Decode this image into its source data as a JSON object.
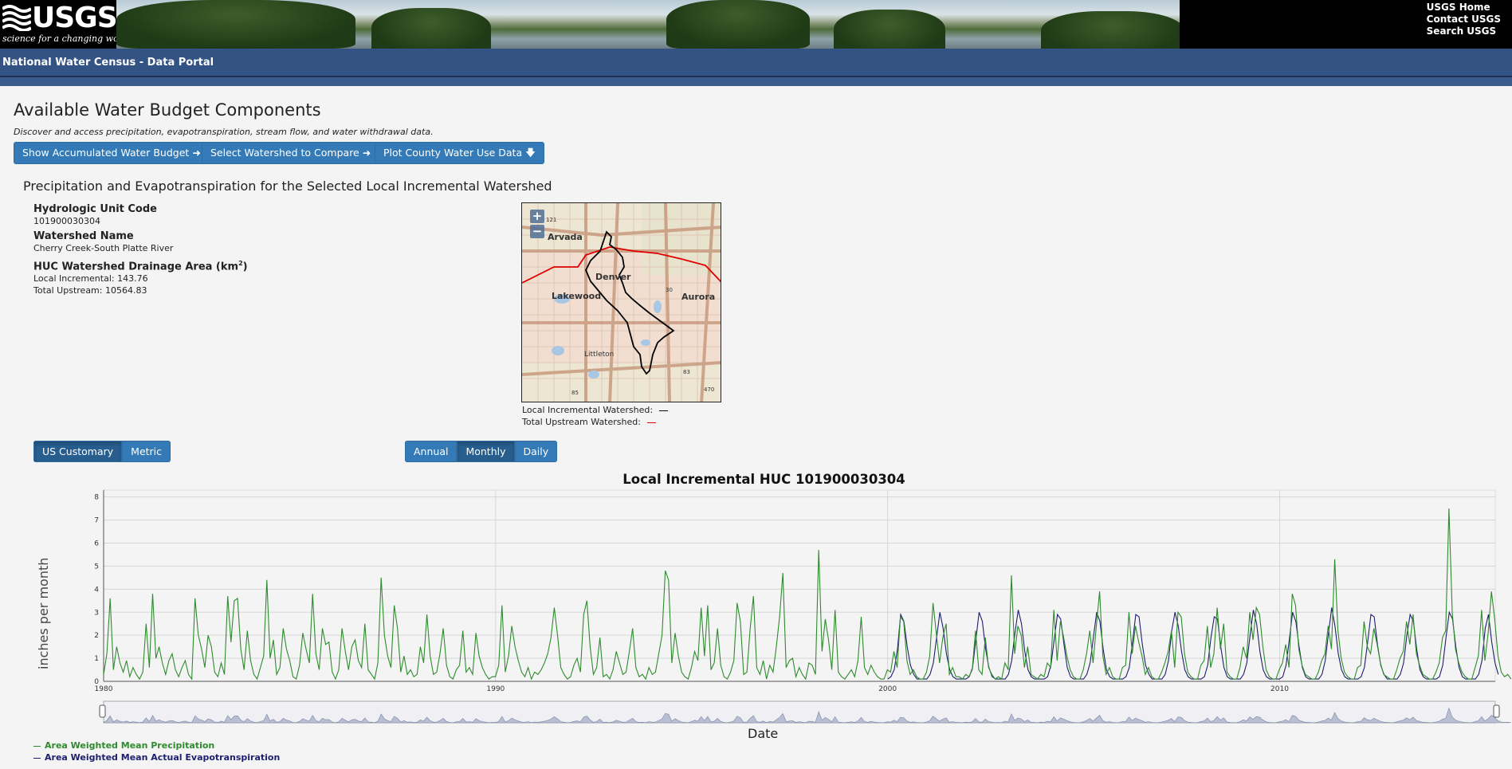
{
  "header": {
    "logo_text": "USGS",
    "logo_tagline": "science for a changing world",
    "links": [
      "USGS Home",
      "Contact USGS",
      "Search USGS"
    ]
  },
  "titlebar": {
    "title": "National Water Census - Data Portal"
  },
  "main": {
    "title": "Available Water Budget Components",
    "subtitle": "Discover and access precipitation, evapotranspiration, stream flow, and water withdrawal data.",
    "buttons": [
      {
        "label": "Show Accumulated Water Budget",
        "icon": "arrow-right-icon"
      },
      {
        "label": "Select Watershed to Compare",
        "icon": "arrow-right-icon"
      },
      {
        "label": "Plot County Water Use Data",
        "icon": "arrow-down-icon"
      }
    ],
    "section_title": "Precipitation and Evapotranspiration for the Selected Local Incremental Watershed"
  },
  "info": {
    "huc_label": "Hydrologic Unit Code",
    "huc_value": "101900030304",
    "name_label": "Watershed Name",
    "name_value": "Cherry Creek-South Platte River",
    "area_label": "HUC Watershed Drainage Area (km",
    "area_label_sup": "2",
    "area_label_end": ")",
    "local_incremental": "Local Incremental: 143.76",
    "total_upstream": "Total Upstream: 10564.83"
  },
  "map": {
    "zoom_in": "+",
    "zoom_out": "−",
    "places": [
      "Arvada",
      "Denver",
      "Lakewood",
      "Aurora",
      "Littleton"
    ],
    "shields": [
      "121",
      "30",
      "83",
      "85",
      "470"
    ],
    "legend_local": "Local Incremental Watershed:",
    "legend_upstream": "Total Upstream Watershed:",
    "local_color": "#000000",
    "upstream_color": "#e00000"
  },
  "units": {
    "options": [
      "US Customary",
      "Metric"
    ],
    "selected": "US Customary"
  },
  "interval": {
    "options": [
      "Annual",
      "Monthly",
      "Daily"
    ],
    "selected": "Monthly"
  },
  "chart": {
    "title": "Local Incremental HUC 101900030304",
    "ylabel": "inches per month",
    "xlabel": "Date",
    "legend_precip": "Area Weighted Mean Precipitation",
    "legend_et": "Area Weighted Mean Actual Evapotranspiration"
  },
  "chart_data": {
    "type": "line",
    "title": "Local Incremental HUC 101900030304",
    "xlabel": "Date",
    "ylabel": "inches per month",
    "xlim": [
      1980,
      2015.5
    ],
    "ylim": [
      0,
      8.3
    ],
    "yticks": [
      0,
      1,
      2,
      3,
      4,
      5,
      6,
      7,
      8
    ],
    "xticks": [
      1980,
      1990,
      2000,
      2010
    ],
    "grid": true,
    "legend_position": "bottom-left",
    "colors": {
      "precip": "#2e8b2e",
      "et": "#1e1e6e"
    },
    "series": [
      {
        "name": "Area Weighted Mean Precipitation",
        "start": 1980.0,
        "step": 0.0833,
        "values": [
          0.3,
          1.2,
          3.6,
          0.5,
          1.5,
          0.8,
          0.4,
          0.9,
          0.2,
          0.6,
          0.3,
          0.1,
          0.4,
          2.5,
          0.6,
          3.8,
          1.0,
          1.5,
          0.8,
          0.3,
          0.9,
          1.2,
          0.5,
          0.2,
          0.6,
          0.9,
          0.3,
          0.1,
          3.6,
          2.0,
          1.4,
          0.6,
          2.0,
          1.5,
          0.4,
          0.2,
          0.8,
          0.3,
          3.7,
          1.7,
          3.5,
          3.6,
          1.4,
          0.5,
          2.2,
          0.9,
          0.3,
          0.1,
          0.6,
          1.1,
          4.4,
          1.0,
          1.8,
          0.3,
          0.6,
          2.3,
          1.4,
          0.9,
          0.2,
          0.1,
          0.7,
          2.1,
          1.4,
          0.8,
          3.8,
          1.2,
          0.5,
          2.3,
          1.6,
          1.7,
          0.4,
          0.1,
          0.5,
          2.3,
          1.3,
          0.5,
          1.5,
          1.8,
          0.9,
          0.6,
          2.5,
          0.5,
          0.3,
          0.1,
          0.8,
          4.5,
          2.0,
          1.1,
          0.6,
          3.3,
          2.3,
          0.4,
          1.1,
          0.3,
          0.5,
          0.2,
          0.3,
          1.5,
          0.8,
          2.9,
          1.1,
          0.3,
          0.4,
          1.2,
          2.3,
          0.7,
          0.2,
          0.1,
          0.5,
          0.7,
          2.2,
          0.4,
          0.6,
          0.3,
          2.1,
          1.1,
          0.6,
          0.3,
          0.1,
          0.2,
          0.2,
          0.7,
          3.3,
          0.4,
          1.1,
          2.4,
          1.5,
          0.9,
          0.4,
          0.2,
          0.6,
          0.1,
          0.4,
          0.3,
          0.5,
          0.8,
          1.2,
          1.9,
          3.2,
          2.0,
          0.6,
          0.3,
          0.1,
          0.2,
          0.7,
          1.0,
          0.4,
          2.9,
          3.5,
          1.5,
          0.3,
          0.6,
          1.9,
          0.2,
          0.3,
          0.1,
          0.5,
          1.3,
          0.8,
          0.3,
          0.4,
          1.3,
          2.3,
          0.6,
          0.2,
          0.3,
          0.1,
          0.6,
          0.3,
          0.4,
          1.2,
          2.0,
          4.8,
          4.4,
          0.8,
          2.1,
          1.1,
          0.4,
          0.2,
          0.1,
          0.6,
          1.3,
          0.9,
          3.2,
          1.1,
          3.3,
          0.5,
          0.8,
          2.3,
          0.7,
          0.2,
          0.1,
          0.4,
          0.9,
          3.4,
          2.6,
          0.3,
          0.4,
          2.3,
          3.7,
          0.6,
          0.3,
          0.9,
          0.1,
          0.7,
          0.4,
          1.5,
          2.8,
          4.7,
          0.6,
          0.9,
          1.0,
          0.2,
          0.6,
          0.3,
          0.1,
          0.8,
          0.7,
          0.3,
          5.7,
          1.3,
          2.7,
          1.8,
          0.5,
          3.1,
          0.4,
          0.2,
          0.1,
          0.3,
          0.5,
          0.2,
          0.9,
          2.8,
          0.6,
          0.3,
          0.7,
          0.4,
          0.2,
          0.1,
          0.1,
          0.5,
          0.4,
          1.3,
          0.6,
          2.8,
          2.6,
          0.9,
          0.3,
          0.5,
          0.2,
          0.1,
          0.1,
          0.4,
          1.1,
          3.4,
          2.1,
          0.8,
          1.9,
          2.5,
          0.3,
          0.6,
          0.2,
          0.2,
          0.1,
          0.3,
          0.2,
          0.5,
          2.2,
          0.5,
          0.3,
          1.9,
          0.6,
          0.3,
          0.1,
          0.2,
          0.1,
          0.8,
          0.5,
          4.6,
          1.2,
          2.4,
          2.0,
          0.6,
          1.5,
          0.3,
          0.2,
          0.1,
          0.3,
          0.2,
          0.8,
          0.6,
          3.1,
          0.9,
          2.6,
          1.9,
          1.1,
          0.5,
          0.2,
          0.1,
          0.1,
          0.5,
          1.2,
          2.2,
          0.8,
          2.4,
          3.9,
          1.1,
          0.3,
          0.6,
          0.2,
          0.1,
          0.1,
          0.6,
          0.7,
          3.0,
          1.2,
          2.4,
          1.7,
          1.1,
          0.3,
          0.6,
          0.2,
          0.1,
          0.1,
          0.4,
          0.8,
          1.3,
          2.2,
          0.6,
          3.0,
          2.8,
          1.2,
          0.4,
          0.2,
          0.1,
          0.1,
          0.7,
          0.9,
          2.4,
          0.6,
          1.2,
          3.2,
          1.4,
          2.5,
          0.4,
          0.2,
          0.1,
          0.1,
          0.6,
          1.5,
          1.0,
          3.0,
          1.8,
          3.2,
          2.9,
          1.5,
          0.5,
          0.2,
          0.1,
          0.1,
          0.5,
          0.8,
          1.6,
          0.6,
          3.8,
          3.3,
          1.4,
          0.7,
          0.3,
          0.2,
          0.1,
          0.1,
          0.4,
          0.9,
          1.2,
          2.4,
          1.4,
          5.3,
          2.2,
          1.0,
          0.4,
          0.2,
          0.1,
          0.1,
          0.6,
          0.7,
          2.6,
          1.5,
          1.2,
          2.3,
          1.6,
          0.8,
          0.3,
          0.2,
          0.1,
          0.1,
          0.5,
          1.0,
          1.3,
          2.6,
          1.6,
          2.9,
          1.2,
          0.7,
          0.3,
          0.2,
          0.1,
          0.1,
          0.4,
          0.8,
          1.9,
          2.2,
          7.5,
          3.0,
          1.4,
          0.8,
          0.4,
          0.2,
          0.1,
          0.1,
          0.6,
          1.1,
          3.1,
          0.9,
          2.1,
          3.9,
          2.7,
          1.1,
          0.4,
          0.2,
          0.3,
          0.1
        ]
      },
      {
        "name": "Area Weighted Mean Actual Evapotranspiration",
        "start": 2000.0,
        "step": 0.0833,
        "values": [
          0.1,
          0.2,
          0.5,
          1.4,
          2.9,
          2.6,
          1.5,
          0.7,
          0.3,
          0.1,
          0.1,
          0.1,
          0.1,
          0.3,
          0.8,
          1.9,
          3.0,
          2.3,
          1.2,
          0.5,
          0.2,
          0.1,
          0.1,
          0.1,
          0.1,
          0.2,
          0.6,
          1.8,
          3.0,
          2.6,
          1.4,
          0.6,
          0.2,
          0.1,
          0.1,
          0.1,
          0.1,
          0.3,
          0.9,
          2.1,
          3.1,
          2.5,
          1.3,
          0.5,
          0.2,
          0.1,
          0.1,
          0.1,
          0.1,
          0.2,
          0.7,
          1.8,
          2.9,
          2.7,
          1.6,
          0.6,
          0.2,
          0.1,
          0.1,
          0.1,
          0.1,
          0.3,
          0.8,
          1.9,
          3.0,
          2.6,
          1.4,
          0.5,
          0.2,
          0.1,
          0.1,
          0.1,
          0.1,
          0.2,
          0.6,
          1.7,
          2.9,
          2.8,
          1.6,
          0.7,
          0.3,
          0.1,
          0.1,
          0.1,
          0.1,
          0.3,
          0.9,
          2.2,
          3.0,
          2.4,
          1.3,
          0.5,
          0.2,
          0.1,
          0.1,
          0.1,
          0.1,
          0.2,
          0.7,
          1.9,
          2.8,
          2.7,
          1.5,
          0.6,
          0.2,
          0.1,
          0.1,
          0.1,
          0.1,
          0.3,
          0.8,
          2.0,
          3.1,
          2.5,
          1.3,
          0.5,
          0.2,
          0.1,
          0.1,
          0.1,
          0.1,
          0.2,
          0.7,
          1.8,
          3.0,
          2.6,
          1.5,
          0.6,
          0.2,
          0.1,
          0.1,
          0.1,
          0.1,
          0.3,
          0.9,
          2.1,
          3.2,
          2.4,
          1.2,
          0.5,
          0.2,
          0.1,
          0.1,
          0.1,
          0.1,
          0.2,
          0.6,
          1.7,
          2.9,
          2.8,
          1.6,
          0.7,
          0.3,
          0.1,
          0.1,
          0.1,
          0.1,
          0.3,
          0.8,
          2.0,
          2.9,
          2.6,
          1.4,
          0.5,
          0.2,
          0.1,
          0.1,
          0.1,
          0.1,
          0.2,
          0.7,
          1.9,
          3.0,
          2.7,
          1.5,
          0.6,
          0.2,
          0.1,
          0.1,
          0.1,
          0.1,
          0.3,
          0.9,
          2.3,
          2.9,
          1.7,
          0.8,
          0.3
        ]
      }
    ]
  }
}
